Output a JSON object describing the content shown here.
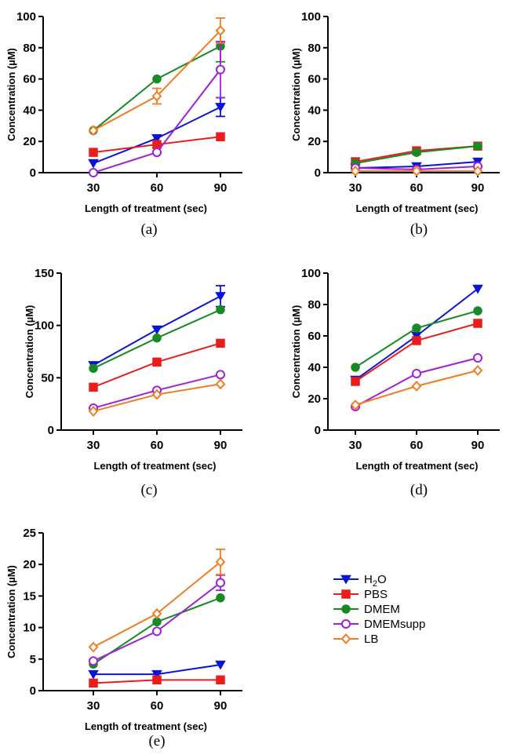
{
  "legend": [
    {
      "name": "H2O",
      "label_main": "H",
      "label_sub": "2",
      "label_tail": "O",
      "color": "#0a14d6",
      "marker": "triangle-down",
      "fill": "filled"
    },
    {
      "name": "PBS",
      "label_main": "PBS",
      "label_sub": "",
      "label_tail": "",
      "color": "#ea1c1c",
      "marker": "square",
      "fill": "filled"
    },
    {
      "name": "DMEM",
      "label_main": "DMEM",
      "label_sub": "",
      "label_tail": "",
      "color": "#178a23",
      "marker": "circle",
      "fill": "filled"
    },
    {
      "name": "DMEMsupp",
      "label_main": "DMEMsupp",
      "label_sub": "",
      "label_tail": "",
      "color": "#a020d8",
      "marker": "circle",
      "fill": "open"
    },
    {
      "name": "LB",
      "label_main": "LB",
      "label_sub": "",
      "label_tail": "",
      "color": "#f07d21",
      "marker": "diamond",
      "fill": "open"
    }
  ],
  "chart_data": [
    {
      "type": "line",
      "panel": "(a)",
      "xlabel": "Length of treatment (sec)",
      "ylabel": "Concentration (µM)",
      "x": [
        30,
        60,
        90
      ],
      "ylim": [
        0,
        100
      ],
      "yticks": [
        0,
        20,
        40,
        60,
        80,
        100
      ],
      "series": [
        {
          "name": "H2O",
          "values": [
            6,
            22,
            42
          ],
          "err": [
            0,
            0,
            6
          ]
        },
        {
          "name": "PBS",
          "values": [
            13,
            18,
            23
          ],
          "err": [
            0,
            0,
            0
          ]
        },
        {
          "name": "DMEM",
          "values": [
            27,
            60,
            81
          ],
          "err": [
            0,
            0,
            10
          ]
        },
        {
          "name": "DMEMsupp",
          "values": [
            0,
            13,
            66
          ],
          "err": [
            0,
            0,
            18
          ]
        },
        {
          "name": "LB",
          "values": [
            27,
            49,
            91
          ],
          "err": [
            0,
            5,
            8
          ]
        }
      ]
    },
    {
      "type": "line",
      "panel": "(b)",
      "xlabel": "Length of treatment (sec)",
      "ylabel": "Concentration (µM)",
      "x": [
        30,
        60,
        90
      ],
      "ylim": [
        0,
        100
      ],
      "yticks": [
        0,
        20,
        40,
        60,
        80,
        100
      ],
      "series": [
        {
          "name": "H2O",
          "values": [
            3,
            4,
            7
          ],
          "err": [
            0,
            0,
            0
          ]
        },
        {
          "name": "PBS",
          "values": [
            7,
            14,
            17
          ],
          "err": [
            0,
            0,
            0
          ]
        },
        {
          "name": "DMEM",
          "values": [
            6,
            13,
            17
          ],
          "err": [
            0,
            0,
            0
          ]
        },
        {
          "name": "DMEMsupp",
          "values": [
            3,
            2,
            4
          ],
          "err": [
            0,
            0,
            0
          ]
        },
        {
          "name": "LB",
          "values": [
            1,
            1,
            1
          ],
          "err": [
            0,
            0,
            0
          ]
        }
      ]
    },
    {
      "type": "line",
      "panel": "(c)",
      "xlabel": "Length of treatment (sec)",
      "ylabel": "Concentration (µM)",
      "x": [
        30,
        60,
        90
      ],
      "ylim": [
        0,
        150
      ],
      "yticks": [
        0,
        50,
        100,
        150
      ],
      "series": [
        {
          "name": "H2O",
          "values": [
            62,
            96,
            128
          ],
          "err": [
            0,
            0,
            10
          ]
        },
        {
          "name": "PBS",
          "values": [
            41,
            65,
            83
          ],
          "err": [
            0,
            0,
            0
          ]
        },
        {
          "name": "DMEM",
          "values": [
            59,
            88,
            115
          ],
          "err": [
            0,
            0,
            0
          ]
        },
        {
          "name": "DMEMsupp",
          "values": [
            21,
            38,
            53
          ],
          "err": [
            0,
            0,
            0
          ]
        },
        {
          "name": "LB",
          "values": [
            18,
            34,
            44
          ],
          "err": [
            0,
            0,
            0
          ]
        }
      ]
    },
    {
      "type": "line",
      "panel": "(d)",
      "xlabel": "Length of treatment (sec)",
      "ylabel": "Concentration (µM)",
      "x": [
        30,
        60,
        90
      ],
      "ylim": [
        0,
        100
      ],
      "yticks": [
        0,
        20,
        40,
        60,
        80,
        100
      ],
      "series": [
        {
          "name": "H2O",
          "values": [
            32,
            60,
            90
          ],
          "err": [
            0,
            0,
            0
          ]
        },
        {
          "name": "PBS",
          "values": [
            31,
            57,
            68
          ],
          "err": [
            0,
            0,
            0
          ]
        },
        {
          "name": "DMEM",
          "values": [
            40,
            65,
            76
          ],
          "err": [
            0,
            0,
            0
          ]
        },
        {
          "name": "DMEMsupp",
          "values": [
            15,
            36,
            46
          ],
          "err": [
            0,
            0,
            0
          ]
        },
        {
          "name": "LB",
          "values": [
            16,
            28,
            38
          ],
          "err": [
            0,
            0,
            0
          ]
        }
      ]
    },
    {
      "type": "line",
      "panel": "(e)",
      "xlabel": "Length of treatment (sec)",
      "ylabel": "Concentration (µM)",
      "x": [
        30,
        60,
        90
      ],
      "ylim": [
        0,
        25
      ],
      "yticks": [
        0,
        5,
        10,
        15,
        20,
        25
      ],
      "series": [
        {
          "name": "H2O",
          "values": [
            2.6,
            2.6,
            4.1
          ],
          "err": [
            0,
            0,
            0
          ]
        },
        {
          "name": "PBS",
          "values": [
            1.2,
            1.7,
            1.7
          ],
          "err": [
            0,
            0,
            0
          ]
        },
        {
          "name": "DMEM",
          "values": [
            4.2,
            10.9,
            14.7
          ],
          "err": [
            0,
            0,
            0
          ]
        },
        {
          "name": "DMEMsupp",
          "values": [
            4.7,
            9.4,
            17.1
          ],
          "err": [
            0,
            0,
            1.2
          ]
        },
        {
          "name": "LB",
          "values": [
            6.9,
            12.2,
            20.4
          ],
          "err": [
            0,
            0,
            2.0
          ]
        }
      ]
    }
  ]
}
